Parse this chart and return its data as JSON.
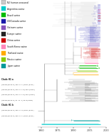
{
  "legend_entries": [
    {
      "label": "N2 human seasonal",
      "color": "#b0b0b0",
      "is_gray": true
    },
    {
      "label": "Argentina swine",
      "color": "#00cccc"
    },
    {
      "label": "Brazil swine",
      "color": "#00bb00"
    },
    {
      "label": "US/Canada swine",
      "color": "#1a1aaa"
    },
    {
      "label": "Vietnam swine",
      "color": "#8855bb"
    },
    {
      "label": "Europe swine",
      "color": "#222222"
    },
    {
      "label": "China swine",
      "color": "#cc0000"
    },
    {
      "label": "South Korea swine",
      "color": "#ff88bb"
    },
    {
      "label": "Thailand swine",
      "color": "#ffaa00"
    },
    {
      "label": "Mexico swine",
      "color": "#88cc00"
    },
    {
      "label": "Japan swine",
      "color": "#009999"
    }
  ],
  "clade_a_lines": [
    "Clade H1 a",
    "A/swine/Brazil/185-11-7/2011(H1N2)",
    "A/swine/Brazil/232-11-13/2011(H1N2)",
    "A/swine/Brazil/232-11-14/2011(H1N2)",
    "A/swine/Brazil/31-11-1/2011(H1N2)"
  ],
  "clade_b_lines": [
    "Clade H1 b",
    "A/swine/Brazil/355-11-6/2011(H3N2)",
    "A/swine/Brazil/365-11-7/2011(H3N2)"
  ],
  "axis_ticks": [
    1960,
    1975,
    1990,
    2005,
    2020
  ],
  "background_color": "#ffffff",
  "figure_width": 1.5,
  "figure_height": 1.84,
  "dpi": 100
}
